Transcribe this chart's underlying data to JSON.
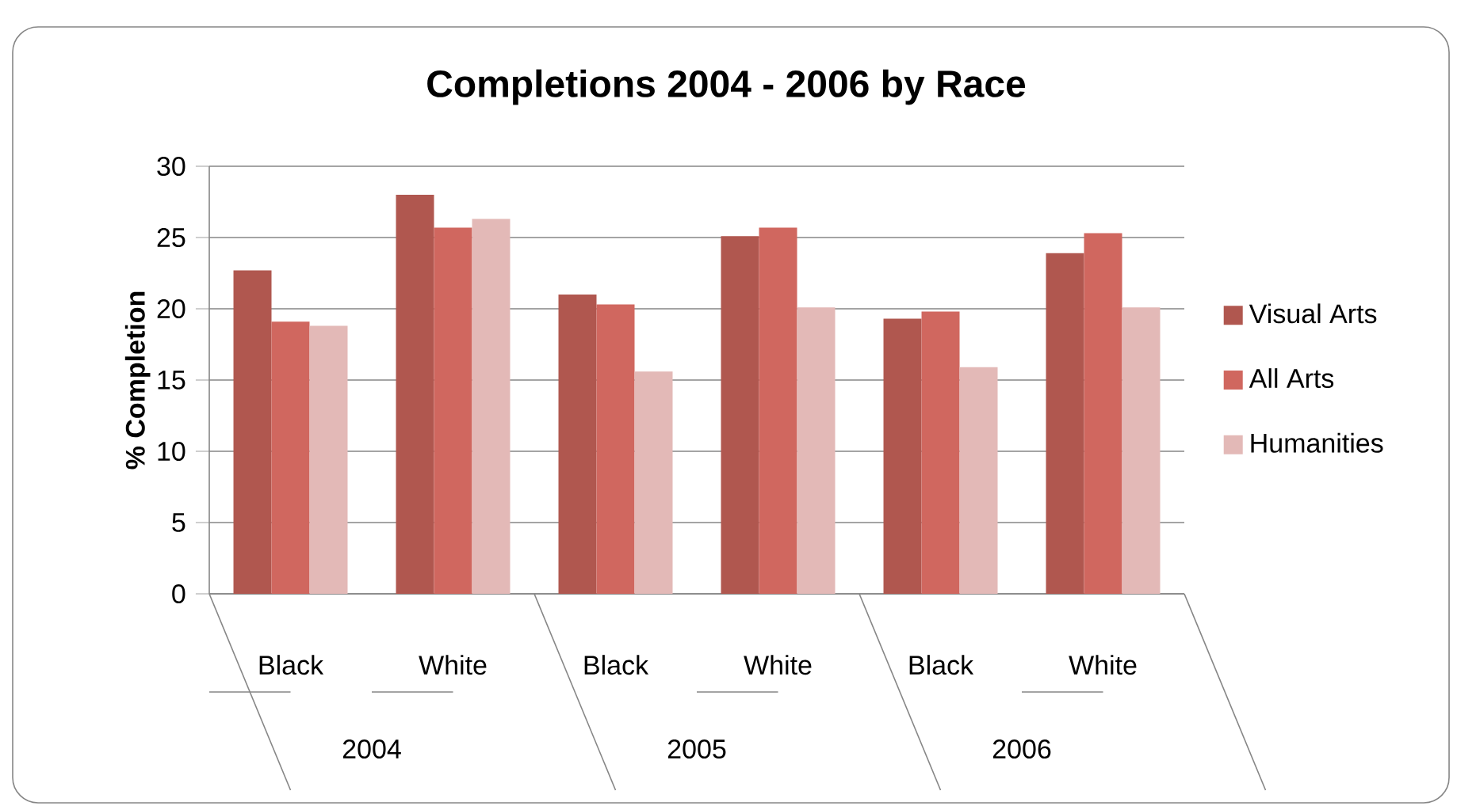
{
  "chart_data": {
    "type": "bar",
    "title": "Completions 2004 - 2006 by Race",
    "ylabel": "% Completion",
    "categories": [
      "Black",
      "White",
      "Black",
      "White",
      "Black",
      "White"
    ],
    "annotations": [
      "2004",
      "2005",
      "2006"
    ],
    "series": [
      {
        "name": "Visual Arts",
        "color": "#b0574f",
        "values": [
          22.7,
          28.0,
          21.0,
          25.1,
          19.3,
          23.9
        ]
      },
      {
        "name": "All Arts",
        "color": "#d0675f",
        "values": [
          19.1,
          25.7,
          20.3,
          25.7,
          19.8,
          25.3
        ]
      },
      {
        "name": "Humanities",
        "color": "#e3b9b7",
        "values": [
          18.8,
          26.3,
          15.6,
          20.1,
          15.9,
          20.1
        ]
      }
    ],
    "ylim": [
      0,
      30
    ],
    "yticks": [
      0,
      5,
      10,
      15,
      20,
      25,
      30
    ],
    "grid": "y",
    "legend": "right"
  }
}
